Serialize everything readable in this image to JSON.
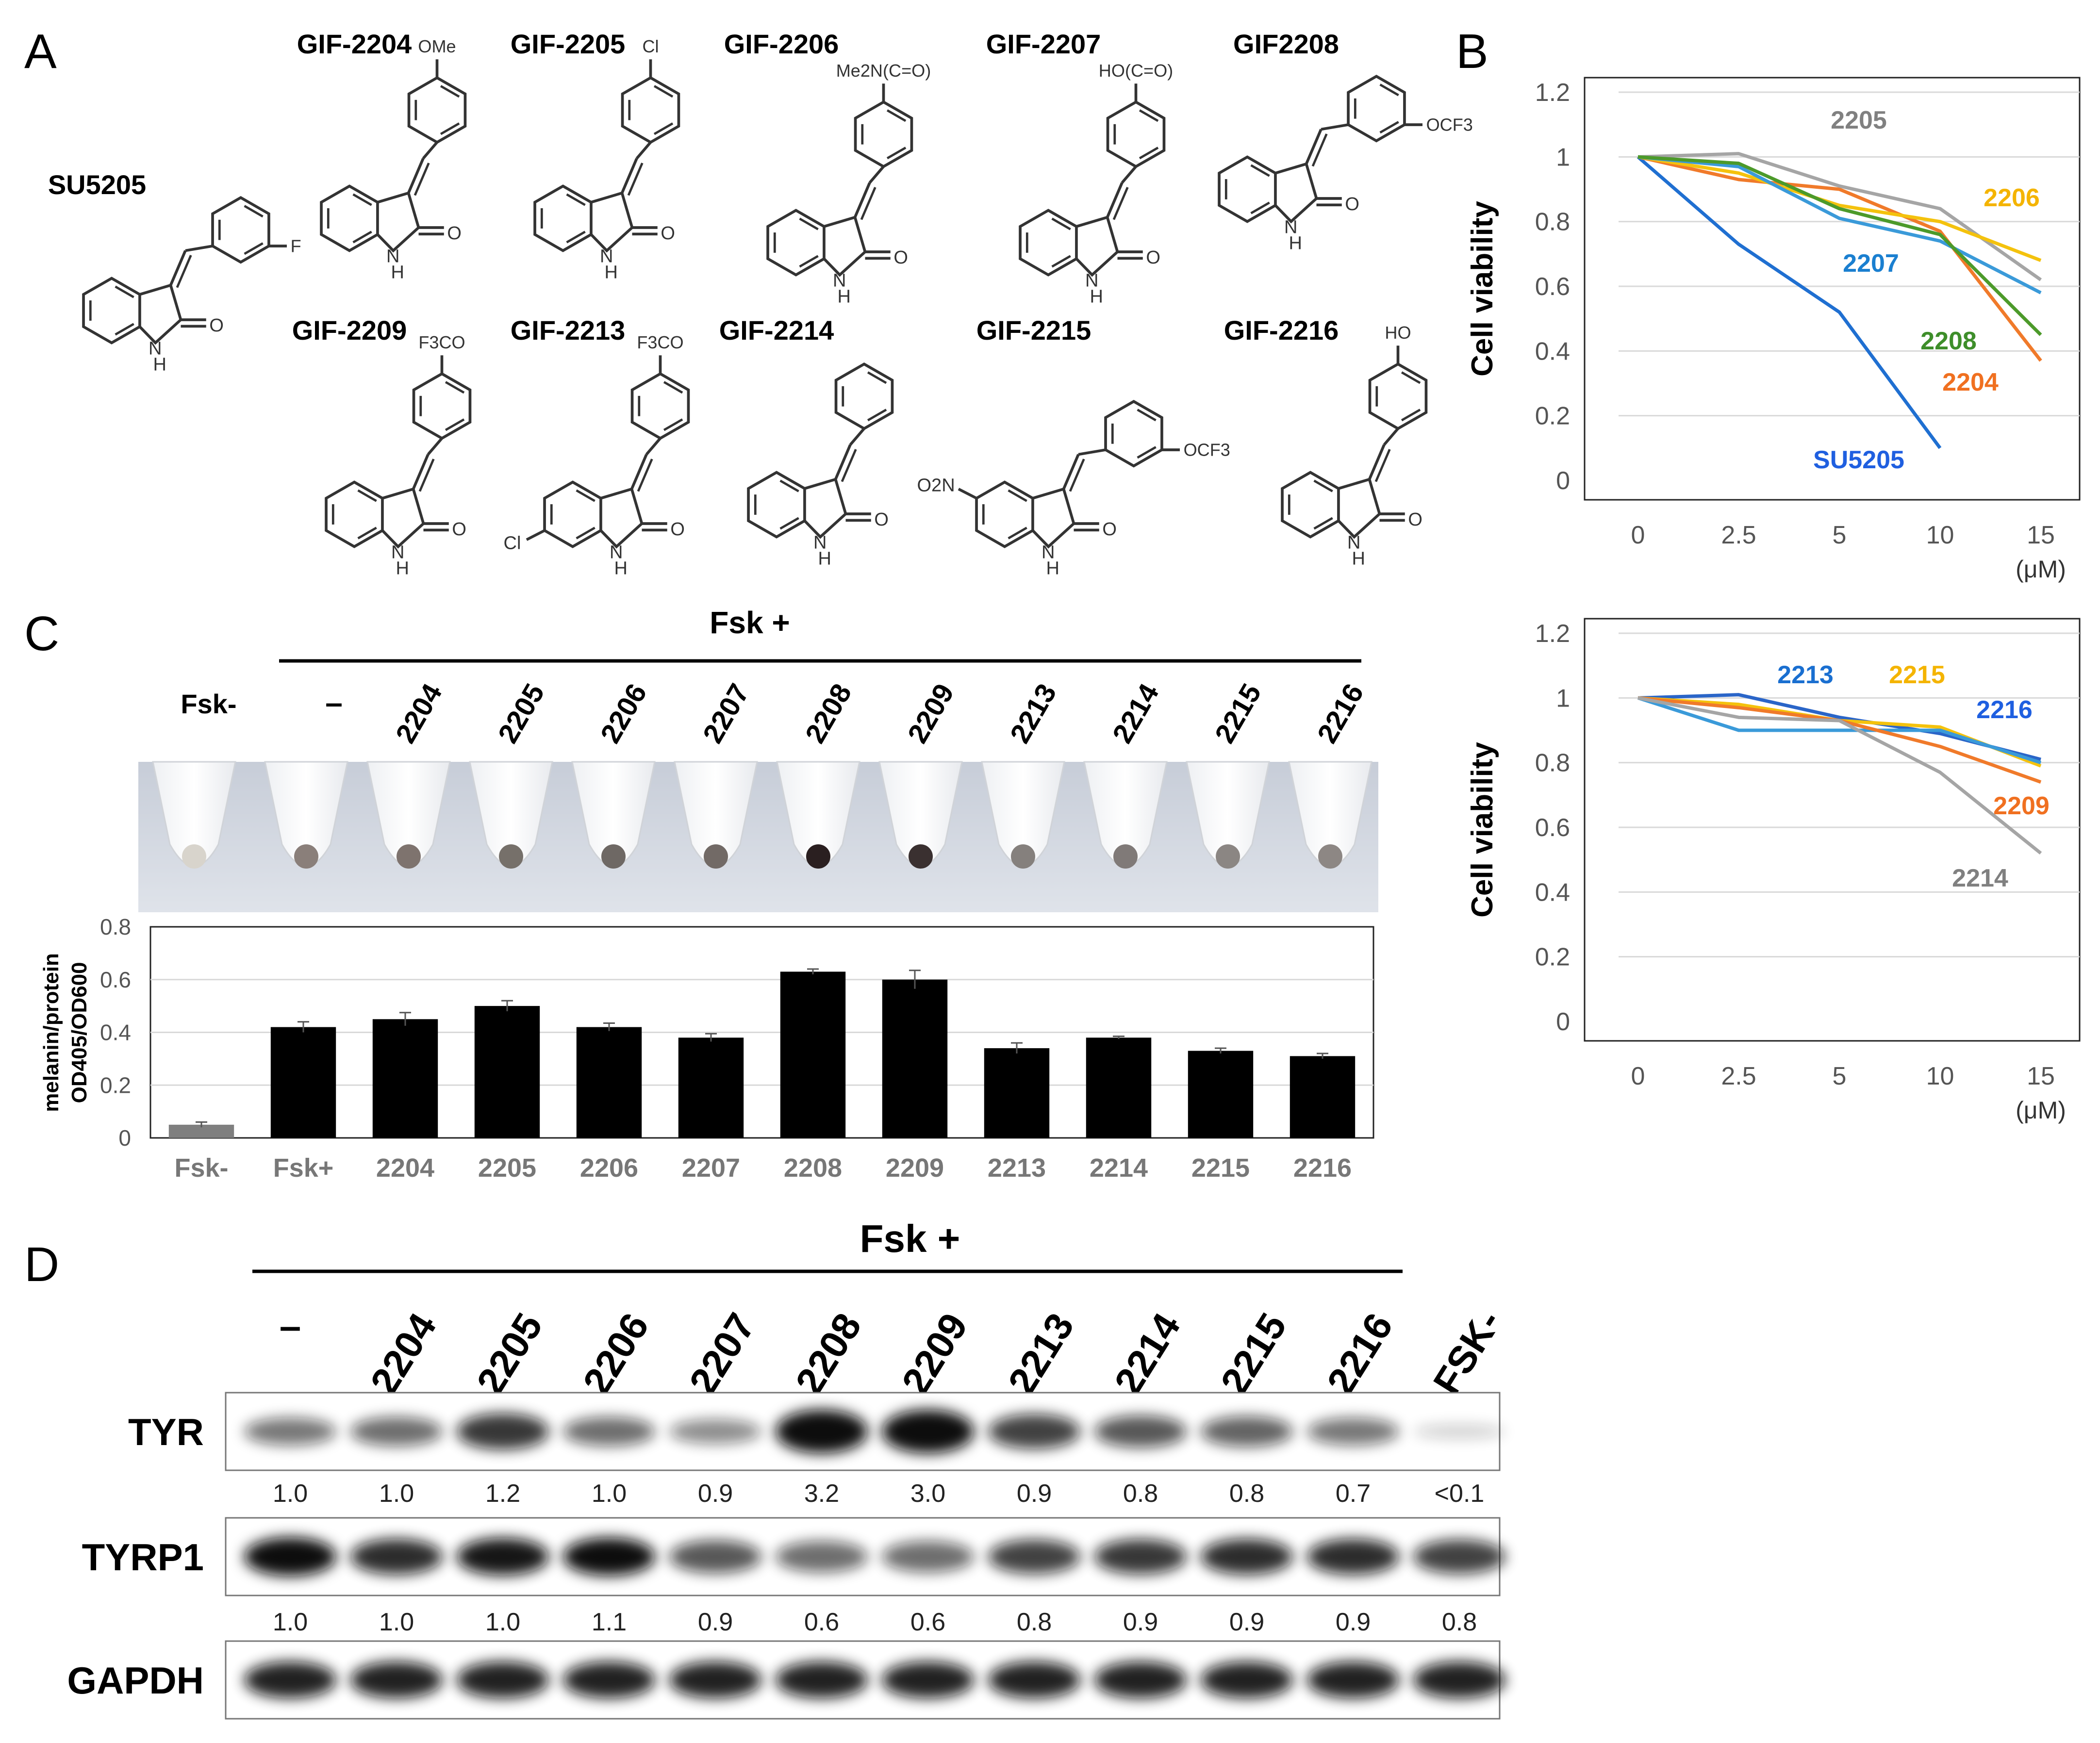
{
  "panels": {
    "a": "A",
    "b": "B",
    "c": "C",
    "d": "D"
  },
  "compounds": [
    {
      "name": "SU5205",
      "substituent": "F"
    },
    {
      "name": "GIF-2204",
      "substituent": "OMe"
    },
    {
      "name": "GIF-2205",
      "substituent": "Cl"
    },
    {
      "name": "GIF-2206",
      "substituent": "Me2N(C=O)"
    },
    {
      "name": "GIF-2207",
      "substituent": "HO(C=O)"
    },
    {
      "name": "GIF2208",
      "substituent": "OCF3"
    },
    {
      "name": "GIF-2209",
      "substituent": "F3CO"
    },
    {
      "name": "GIF-2213",
      "substituent": "F3CO"
    },
    {
      "name": "GIF-2214",
      "substituent": ""
    },
    {
      "name": "GIF-2215",
      "substituent": "OCF3"
    },
    {
      "name": "GIF-2216",
      "substituent": "HO"
    }
  ],
  "chem": {
    "nh": "NH",
    "h": "H",
    "n": "N",
    "o": "O",
    "eq_o": "O",
    "o_sub": "O",
    "sub_nh": "NH",
    "cl_ring": "Cl",
    "o2n": "O2N",
    "sub_f3": "3"
  },
  "tube_labels": {
    "fsk_plus": "Fsk +",
    "fsk_minus": "Fsk-",
    "dash": "–",
    "items": [
      "2204",
      "2205",
      "2206",
      "2207",
      "2208",
      "2209",
      "2213",
      "2214",
      "2215",
      "2216"
    ]
  },
  "blot": {
    "fsk_plus": "Fsk +",
    "lanes": [
      "–",
      "2204",
      "2205",
      "2206",
      "2207",
      "2208",
      "2209",
      "2213",
      "2214",
      "2215",
      "2216",
      "FSK-"
    ],
    "rows": [
      {
        "name": "TYR",
        "values": [
          "1.0",
          "1.0",
          "1.2",
          "1.0",
          "0.9",
          "3.2",
          "3.0",
          "0.9",
          "0.8",
          "0.8",
          "0.7",
          "<0.1"
        ]
      },
      {
        "name": "TYRP1",
        "values": [
          "1.0",
          "1.0",
          "1.0",
          "1.1",
          "0.9",
          "0.6",
          "0.6",
          "0.8",
          "0.9",
          "0.9",
          "0.9",
          "0.8"
        ]
      },
      {
        "name": "GAPDH",
        "values": []
      }
    ]
  },
  "chart_data": [
    {
      "type": "line",
      "panel": "B (top)",
      "title": "",
      "xlabel": "(μM)",
      "ylabel": "Cell viability",
      "categories": [
        "0",
        "2.5",
        "5",
        "10",
        "15"
      ],
      "ylim": [
        0,
        1.2
      ],
      "yticks": [
        "0",
        "0.2",
        "0.4",
        "0.6",
        "0.8",
        "1",
        "1.2"
      ],
      "grid": true,
      "series": [
        {
          "name": "SU5205",
          "color": "#1f6fd1",
          "label_color": "#1f5fe0",
          "values": [
            1.0,
            0.73,
            0.52,
            0.1,
            null
          ]
        },
        {
          "name": "2204",
          "color": "#f07a2a",
          "label_color": "#f07020",
          "values": [
            1.0,
            0.93,
            0.9,
            0.77,
            0.37
          ]
        },
        {
          "name": "2205",
          "color": "#a5a5a5",
          "label_color": "#808080",
          "values": [
            1.0,
            1.01,
            0.91,
            0.84,
            0.62
          ]
        },
        {
          "name": "2206",
          "color": "#f4c20d",
          "label_color": "#f4b400",
          "values": [
            1.0,
            0.95,
            0.85,
            0.8,
            0.68
          ]
        },
        {
          "name": "2207",
          "color": "#3a9ad9",
          "label_color": "#1a7fd0",
          "values": [
            1.0,
            0.97,
            0.81,
            0.74,
            0.58
          ]
        },
        {
          "name": "2208",
          "color": "#4c9a2a",
          "label_color": "#3e8e2a",
          "values": [
            1.0,
            0.98,
            0.84,
            0.76,
            0.45
          ]
        }
      ]
    },
    {
      "type": "line",
      "panel": "B (bottom)",
      "title": "",
      "xlabel": "(μM)",
      "ylabel": "Cell viability",
      "categories": [
        "0",
        "2.5",
        "5",
        "10",
        "15"
      ],
      "ylim": [
        0,
        1.2
      ],
      "yticks": [
        "0",
        "0.2",
        "0.4",
        "0.6",
        "0.8",
        "1",
        "1.2"
      ],
      "grid": true,
      "series": [
        {
          "name": "2213",
          "color": "#2a65c8",
          "label_color": "#1a6fd0",
          "values": [
            1.0,
            1.01,
            0.94,
            0.89,
            0.81
          ]
        },
        {
          "name": "2215",
          "color": "#f4c20d",
          "label_color": "#f4b400",
          "values": [
            1.0,
            0.98,
            0.93,
            0.91,
            0.79
          ]
        },
        {
          "name": "2216",
          "color": "#3a9ad9",
          "label_color": "#1f5fe0",
          "values": [
            1.0,
            0.9,
            0.9,
            0.9,
            0.8
          ]
        },
        {
          "name": "2209",
          "color": "#f07a2a",
          "label_color": "#f07020",
          "values": [
            1.0,
            0.97,
            0.93,
            0.85,
            0.74
          ]
        },
        {
          "name": "2214",
          "color": "#a5a5a5",
          "label_color": "#808080",
          "values": [
            1.0,
            0.94,
            0.93,
            0.77,
            0.52
          ]
        }
      ]
    },
    {
      "type": "bar",
      "panel": "C",
      "title": "",
      "xlabel": "",
      "ylabel": "melanin/protein OD405/OD600",
      "ylabel_lines": [
        "melanin/protein",
        "OD405/OD600"
      ],
      "categories": [
        "Fsk-",
        "Fsk+",
        "2204",
        "2205",
        "2206",
        "2207",
        "2208",
        "2209",
        "2213",
        "2214",
        "2215",
        "2216"
      ],
      "values": [
        0.05,
        0.42,
        0.45,
        0.5,
        0.42,
        0.38,
        0.63,
        0.6,
        0.34,
        0.38,
        0.33,
        0.31
      ],
      "errors": [
        0.01,
        0.02,
        0.025,
        0.02,
        0.015,
        0.015,
        0.01,
        0.035,
        0.02,
        0.005,
        0.01,
        0.01
      ],
      "colors": [
        "#7f7f7f",
        "#000000",
        "#000000",
        "#000000",
        "#000000",
        "#000000",
        "#000000",
        "#000000",
        "#000000",
        "#000000",
        "#000000",
        "#000000"
      ],
      "ylim": [
        0,
        0.8
      ],
      "yticks": [
        "0",
        "0.2",
        "0.4",
        "0.6",
        "0.8"
      ],
      "grid": true
    }
  ]
}
